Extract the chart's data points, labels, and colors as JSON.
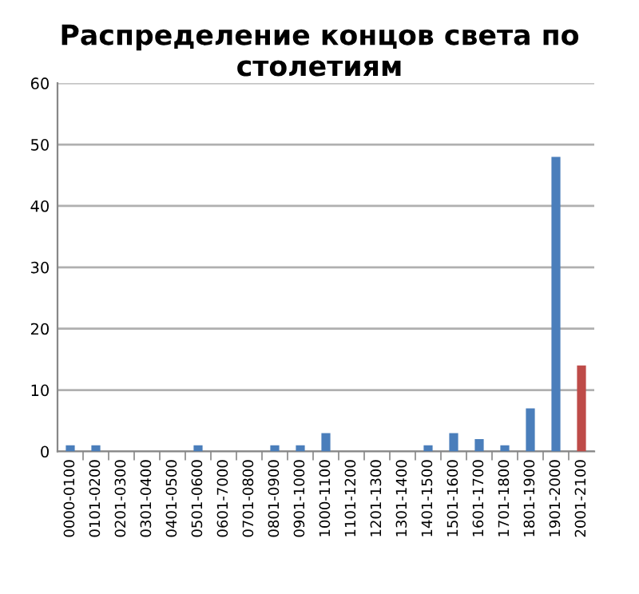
{
  "chart_data": {
    "type": "bar",
    "title": "Распределение концов света по столетиям",
    "categories": [
      "0000-0100",
      "0101-0200",
      "0201-0300",
      "0301-0400",
      "0401-0500",
      "0501-0600",
      "0601-7000",
      "0701-0800",
      "0801-0900",
      "0901-1000",
      "1000-1100",
      "1101-1200",
      "1201-1300",
      "1301-1400",
      "1401-1500",
      "1501-1600",
      "1601-1700",
      "1701-1800",
      "1801-1900",
      "1901-2000",
      "2001-2100"
    ],
    "values": [
      1,
      1,
      0,
      0,
      0,
      1,
      0,
      0,
      1,
      1,
      3,
      0,
      0,
      0,
      1,
      3,
      2,
      1,
      7,
      48,
      14
    ],
    "colors": [
      "#4a7ebb",
      "#4a7ebb",
      "#4a7ebb",
      "#4a7ebb",
      "#4a7ebb",
      "#4a7ebb",
      "#4a7ebb",
      "#4a7ebb",
      "#4a7ebb",
      "#4a7ebb",
      "#4a7ebb",
      "#4a7ebb",
      "#4a7ebb",
      "#4a7ebb",
      "#4a7ebb",
      "#4a7ebb",
      "#4a7ebb",
      "#4a7ebb",
      "#4a7ebb",
      "#4a7ebb",
      "#be4b48"
    ],
    "ylim": [
      0,
      60
    ],
    "yticks": [
      0,
      10,
      20,
      30,
      40,
      50,
      60
    ],
    "grid": "y",
    "legend": false
  }
}
